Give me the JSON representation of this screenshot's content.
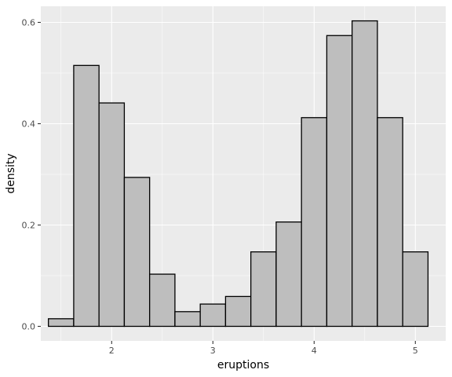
{
  "chart_data": {
    "type": "bar",
    "title": "",
    "xlabel": "eruptions",
    "ylabel": "density",
    "xlim": [
      1.3,
      5.3
    ],
    "ylim": [
      0.0,
      0.6
    ],
    "x_ticks": [
      2,
      3,
      4,
      5
    ],
    "x_tick_labels": [
      "2",
      "3",
      "4",
      "5"
    ],
    "y_ticks": [
      0.0,
      0.2,
      0.4,
      0.6
    ],
    "y_tick_labels": [
      "0.0",
      "0.2",
      "0.4",
      "0.6"
    ],
    "grid": true,
    "legend": "none",
    "bin_width": 0.25,
    "bins": [
      {
        "x0": 1.375,
        "x1": 1.625,
        "density": 0.015
      },
      {
        "x0": 1.625,
        "x1": 1.875,
        "density": 0.515
      },
      {
        "x0": 1.875,
        "x1": 2.125,
        "density": 0.441
      },
      {
        "x0": 2.125,
        "x1": 2.375,
        "density": 0.294
      },
      {
        "x0": 2.375,
        "x1": 2.625,
        "density": 0.103
      },
      {
        "x0": 2.625,
        "x1": 2.875,
        "density": 0.029
      },
      {
        "x0": 2.875,
        "x1": 3.125,
        "density": 0.044
      },
      {
        "x0": 3.125,
        "x1": 3.375,
        "density": 0.059
      },
      {
        "x0": 3.375,
        "x1": 3.625,
        "density": 0.147
      },
      {
        "x0": 3.625,
        "x1": 3.875,
        "density": 0.206
      },
      {
        "x0": 3.875,
        "x1": 4.125,
        "density": 0.412
      },
      {
        "x0": 4.125,
        "x1": 4.375,
        "density": 0.574
      },
      {
        "x0": 4.375,
        "x1": 4.625,
        "density": 0.603
      },
      {
        "x0": 4.625,
        "x1": 4.875,
        "density": 0.412
      },
      {
        "x0": 4.875,
        "x1": 5.125,
        "density": 0.147
      }
    ]
  },
  "colors": {
    "panel_background": "#ebebeb",
    "grid_major": "#ffffff",
    "bar_fill": "#bebebe",
    "bar_stroke": "#000000",
    "tick_text": "#4d4d4d",
    "tick_mark": "#333333"
  }
}
